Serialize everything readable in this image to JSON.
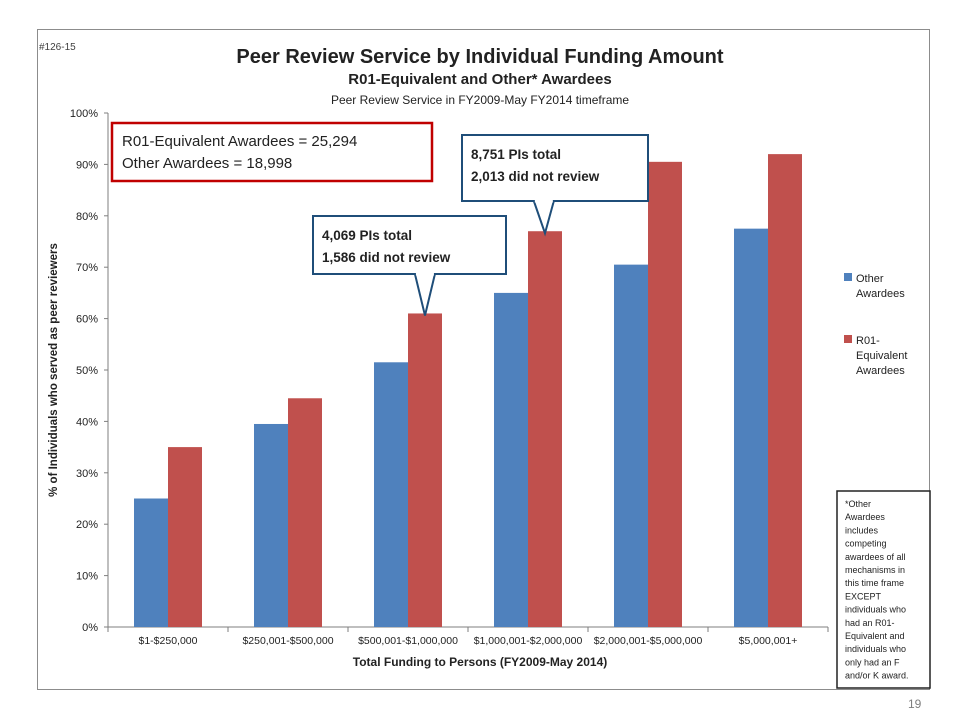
{
  "slide": {
    "id_label": "#126-15",
    "page_number": "19"
  },
  "chart_data": {
    "type": "bar",
    "title": "Peer Review Service by Individual Funding Amount",
    "subtitle": "R01-Equivalent and Other* Awardees",
    "subtitle2": "Peer Review Service in FY2009-May FY2014 timeframe",
    "xlabel": "Total Funding to Persons (FY2009-May 2014)",
    "ylabel": "% of Individuals who served as peer reviewers",
    "ylim": [
      0,
      100
    ],
    "y_ticks": [
      0,
      10,
      20,
      30,
      40,
      50,
      60,
      70,
      80,
      90,
      100
    ],
    "y_tick_suffix": "%",
    "grid": false,
    "legend_position": "right",
    "categories": [
      "$1-$250,000",
      "$250,001-$500,000",
      "$500,001-$1,000,000",
      "$1,000,001-$2,000,000",
      "$2,000,001-$5,000,000",
      "$5,000,001+"
    ],
    "series": [
      {
        "name": "Other Awardees",
        "color": "#4f81bd",
        "values": [
          25,
          39.5,
          51.5,
          65,
          70.5,
          77.5
        ]
      },
      {
        "name": "R01-Equivalent Awardees",
        "color": "#c0504d",
        "values": [
          35,
          44.5,
          61,
          77,
          90.5,
          92
        ]
      }
    ],
    "legend_lines": [
      [
        "Other",
        "Awardees"
      ],
      [
        "R01-",
        "Equivalent",
        "Awardees"
      ]
    ],
    "totals_box": {
      "lines": [
        "R01-Equivalent Awardees = 25,294",
        "Other Awardees = 18,998"
      ],
      "border_color": "#c00000"
    },
    "callouts": [
      {
        "lines": [
          "4,069 PIs total",
          "1,586 did not review"
        ],
        "category_index": 2,
        "series_index": 1,
        "border_color": "#1f4e79"
      },
      {
        "lines": [
          "8,751 PIs total",
          "2,013 did not review"
        ],
        "category_index": 3,
        "series_index": 1,
        "border_color": "#1f4e79"
      }
    ],
    "footnote_lines": [
      "*Other",
      "Awardees",
      "includes",
      "competing",
      "awardees of all",
      "mechanisms in",
      "this time frame",
      "EXCEPT",
      "individuals who",
      "had an R01-",
      "Equivalent and",
      "individuals who",
      "only had an F",
      "and/or K award."
    ]
  }
}
